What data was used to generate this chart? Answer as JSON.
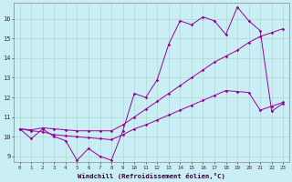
{
  "xlabel": "Windchill (Refroidissement éolien,°C)",
  "background_color": "#caeef5",
  "grid_color": "#b0d8cc",
  "line_color": "#990099",
  "x_data": [
    0,
    1,
    2,
    3,
    4,
    5,
    6,
    7,
    8,
    9,
    10,
    11,
    12,
    13,
    14,
    15,
    16,
    17,
    18,
    19,
    20,
    21,
    22,
    23
  ],
  "line1_y": [
    10.4,
    9.9,
    10.4,
    10.0,
    9.8,
    8.8,
    9.4,
    9.0,
    8.8,
    10.3,
    12.2,
    12.0,
    12.9,
    14.7,
    15.9,
    15.7,
    16.1,
    15.9,
    15.2,
    16.6,
    15.9,
    15.4,
    11.3,
    11.7
  ],
  "line2_y": [
    10.4,
    10.35,
    10.45,
    10.4,
    10.35,
    10.3,
    10.3,
    10.3,
    10.3,
    10.6,
    11.0,
    11.4,
    11.8,
    12.2,
    12.6,
    13.0,
    13.4,
    13.8,
    14.1,
    14.4,
    14.8,
    15.1,
    15.3,
    15.5
  ],
  "line3_y": [
    10.4,
    10.3,
    10.25,
    10.1,
    10.05,
    10.0,
    9.95,
    9.9,
    9.85,
    10.1,
    10.4,
    10.6,
    10.85,
    11.1,
    11.35,
    11.6,
    11.85,
    12.1,
    12.35,
    12.3,
    12.25,
    11.35,
    11.55,
    11.75
  ],
  "ylim": [
    8.7,
    16.8
  ],
  "xlim": [
    -0.5,
    23.5
  ],
  "yticks": [
    9,
    10,
    11,
    12,
    13,
    14,
    15,
    16
  ],
  "xticks": [
    0,
    1,
    2,
    3,
    4,
    5,
    6,
    7,
    8,
    9,
    10,
    11,
    12,
    13,
    14,
    15,
    16,
    17,
    18,
    19,
    20,
    21,
    22,
    23
  ]
}
